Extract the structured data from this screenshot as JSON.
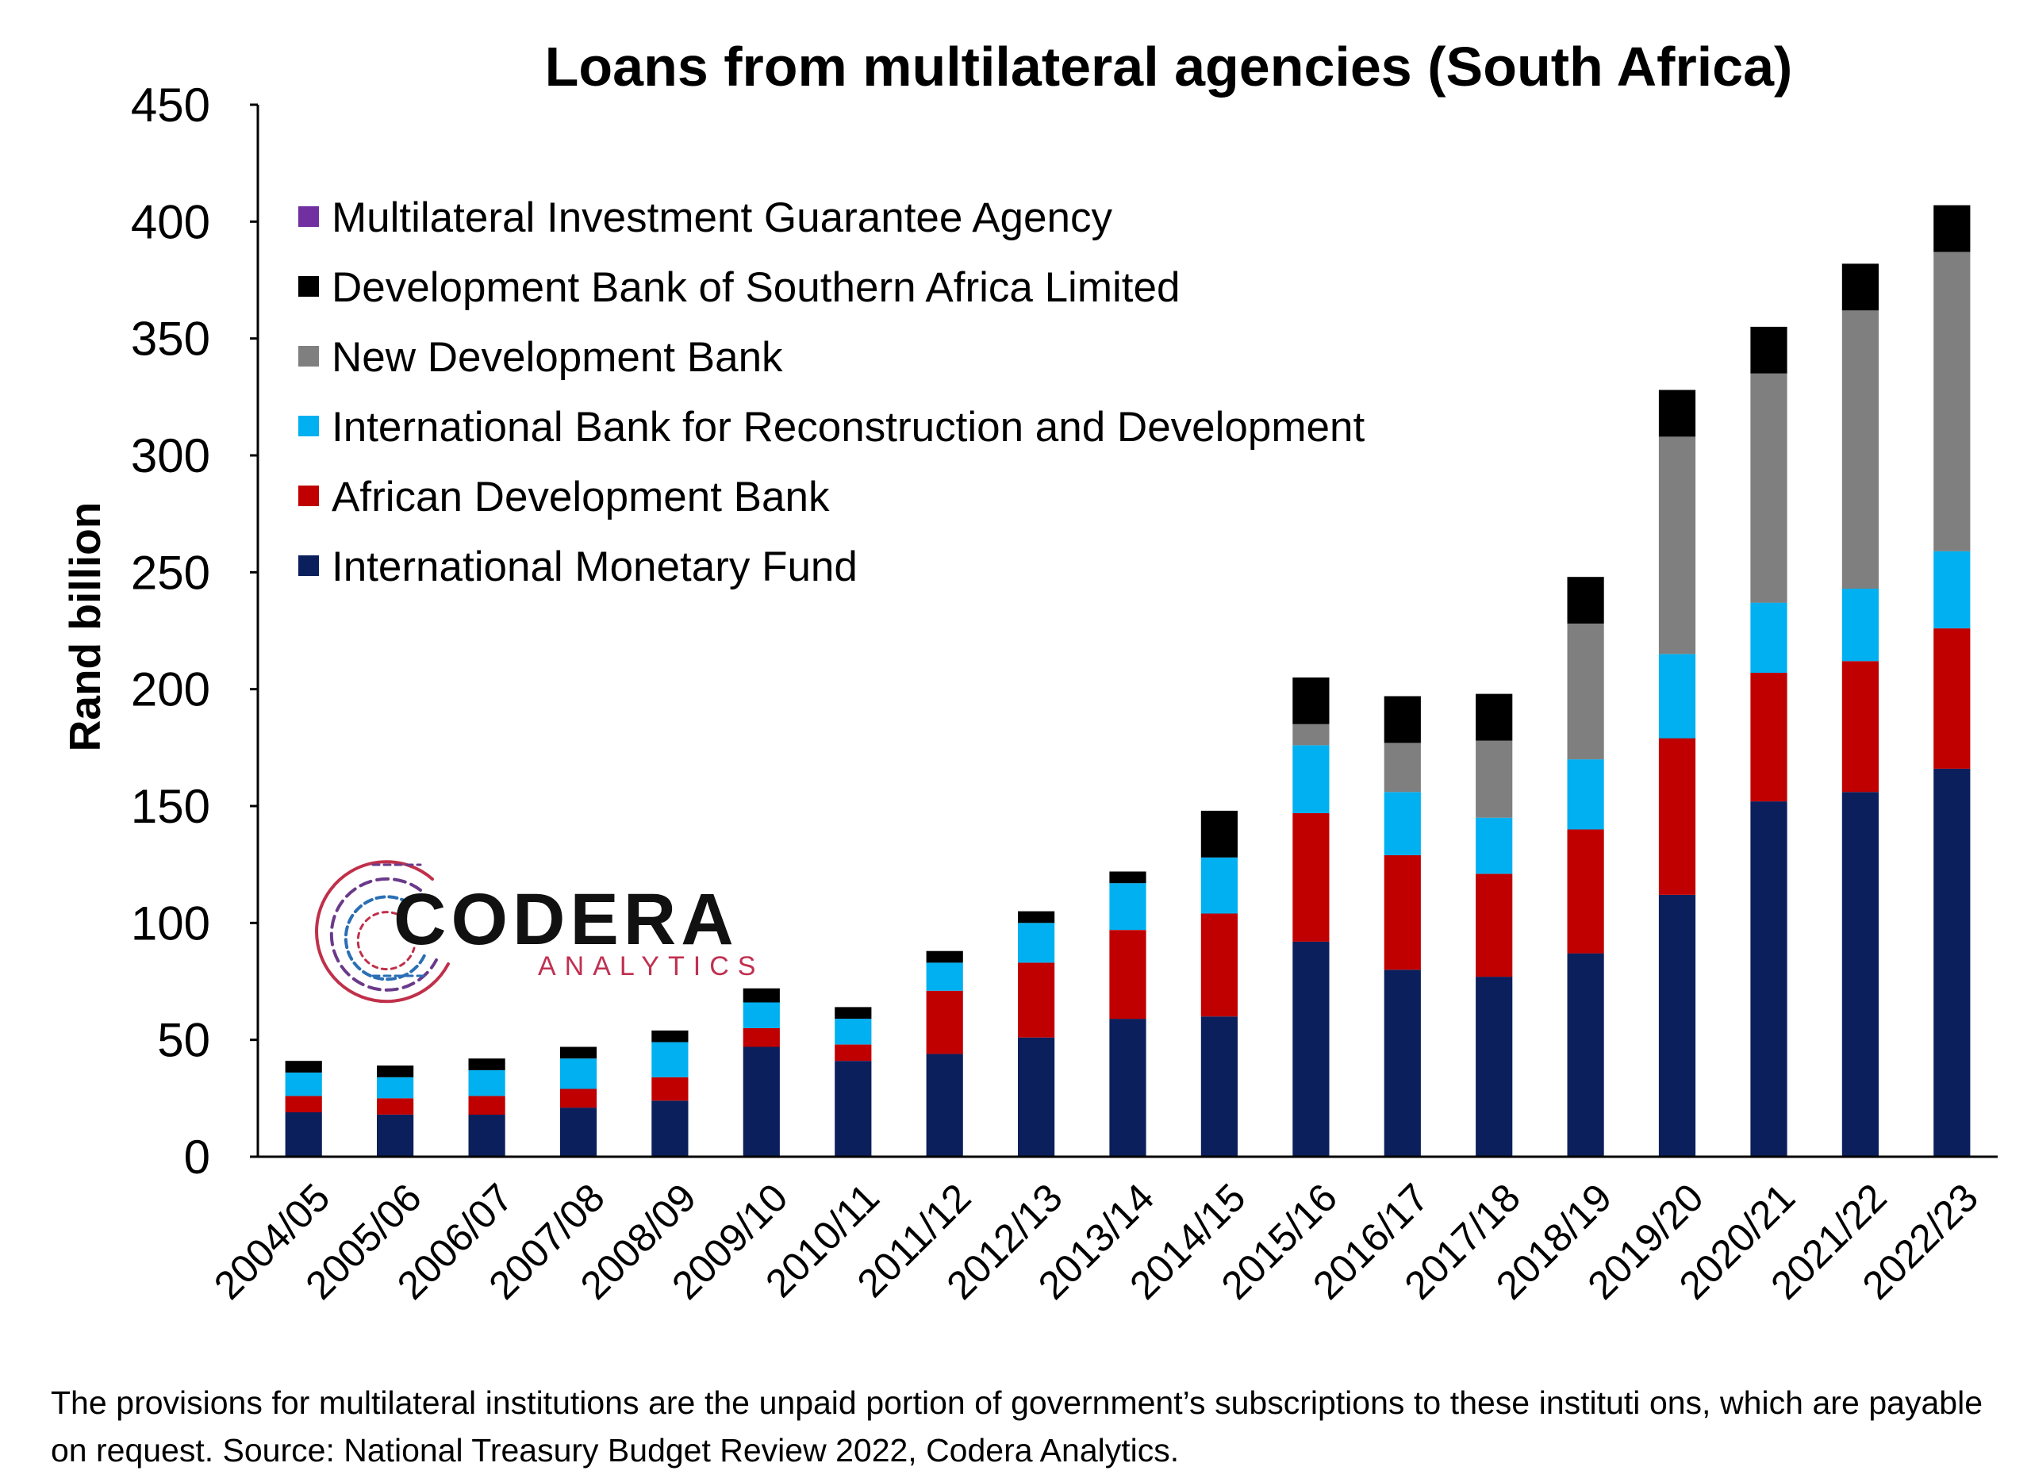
{
  "chart_data": {
    "type": "bar",
    "stacked": true,
    "title": "Loans from multilateral agencies (South Africa)",
    "ylabel": "Rand billion",
    "xlabel": "",
    "ylim": [
      0,
      450
    ],
    "yticks": [
      "0",
      "50",
      "100",
      "150",
      "200",
      "250",
      "300",
      "350",
      "400",
      "450"
    ],
    "grid": false,
    "legend_position": "top-left",
    "categories": [
      "2004/05",
      "2005/06",
      "2006/07",
      "2007/08",
      "2008/09",
      "2009/10",
      "2010/11",
      "2011/12",
      "2012/13",
      "2013/14",
      "2014/15",
      "2015/16",
      "2016/17",
      "2017/18",
      "2018/19",
      "2019/20",
      "2020/21",
      "2021/22",
      "2022/23"
    ],
    "series": [
      {
        "name": "International Monetary Fund",
        "color": "#0b1f5c",
        "values": [
          19,
          18,
          18,
          21,
          24,
          47,
          41,
          44,
          51,
          59,
          60,
          92,
          80,
          77,
          87,
          112,
          152,
          156,
          166
        ]
      },
      {
        "name": "African Development Bank",
        "color": "#c00000",
        "values": [
          7,
          7,
          8,
          8,
          10,
          8,
          7,
          27,
          32,
          38,
          44,
          55,
          49,
          44,
          53,
          67,
          55,
          56,
          60
        ]
      },
      {
        "name": "International Bank for Reconstruction and Development",
        "color": "#00b0f0",
        "values": [
          10,
          9,
          11,
          13,
          15,
          11,
          11,
          12,
          17,
          20,
          24,
          29,
          27,
          24,
          30,
          36,
          30,
          31,
          33
        ]
      },
      {
        "name": "New Development Bank",
        "color": "#7f7f7f",
        "values": [
          0,
          0,
          0,
          0,
          0,
          0,
          0,
          0,
          0,
          0,
          0,
          9,
          21,
          33,
          58,
          93,
          98,
          119,
          128
        ]
      },
      {
        "name": "Development Bank of Southern Africa Limited",
        "color": "#000000",
        "values": [
          5,
          5,
          5,
          5,
          5,
          6,
          5,
          5,
          5,
          5,
          20,
          20,
          20,
          20,
          20,
          20,
          20,
          20,
          20
        ]
      },
      {
        "name": "Multilateral Investment Guarantee Agency",
        "color": "#7030a0",
        "values": [
          0,
          0,
          0,
          0,
          0,
          0,
          0,
          0,
          0,
          0,
          0,
          0,
          0,
          0,
          0,
          0,
          0,
          0,
          0
        ]
      }
    ],
    "legend_order": [
      "Multilateral Investment Guarantee Agency",
      "Development Bank of Southern Africa Limited",
      "New Development Bank",
      "International Bank for Reconstruction and Development",
      "African Development Bank",
      "International Monetary Fund"
    ]
  },
  "logo": {
    "main": "CODERA",
    "sub": "ANALYTICS"
  },
  "footnote": "The provisions for multilateral institutions are the unpaid portion of government’s subscriptions to these instituti ons, which are payable on request. Source: National Treasury Budget Review 2022, Codera Analytics."
}
